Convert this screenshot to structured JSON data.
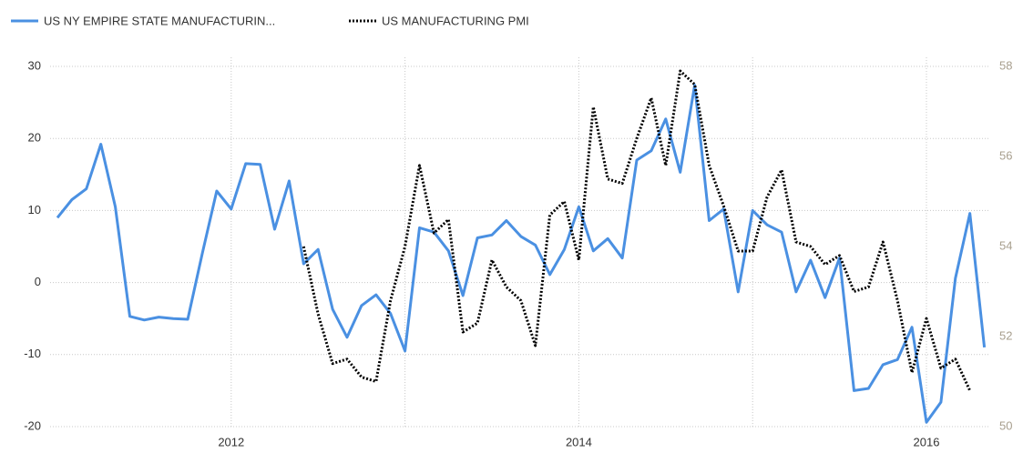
{
  "chart_data": {
    "type": "line",
    "categories": [
      null,
      null,
      null,
      null,
      null,
      null,
      null,
      null,
      null,
      null,
      null,
      null,
      "2012",
      null,
      null,
      null,
      null,
      null,
      null,
      null,
      null,
      null,
      null,
      null,
      null,
      null,
      null,
      null,
      null,
      null,
      null,
      null,
      null,
      null,
      null,
      null,
      "2014",
      null,
      null,
      null,
      null,
      null,
      null,
      null,
      null,
      null,
      null,
      null,
      null,
      null,
      null,
      null,
      null,
      null,
      null,
      null,
      null,
      null,
      null,
      null,
      "2016",
      null,
      null,
      null,
      null
    ],
    "series": [
      {
        "name": "US NY EMPIRE STATE MANUFACTURIN...",
        "color": "#4a90e2",
        "axis": "y",
        "values": [
          9,
          11.5,
          13,
          19.2,
          10.5,
          -4.7,
          -5.2,
          -4.8,
          -5,
          -5.1,
          4,
          12.7,
          10.2,
          16.5,
          16.4,
          7.4,
          14.1,
          2.6,
          4.6,
          -3.7,
          -7.6,
          -3.2,
          -1.7,
          -4.3,
          -9.5,
          7.6,
          7,
          4.4,
          -1.8,
          6.2,
          6.6,
          8.6,
          6.4,
          5.2,
          1.1,
          4.6,
          10.5,
          4.4,
          6.1,
          3.4,
          17,
          18.3,
          22.7,
          15.3,
          27.4,
          8.6,
          10.2,
          -1.3,
          10,
          8,
          7,
          -1.3,
          3.1,
          -2.1,
          3.4,
          -15,
          -14.7,
          -11.4,
          -10.7,
          -6.2,
          -19.4,
          -16.6,
          0.6,
          9.6,
          -9
        ]
      },
      {
        "name": "US MANUFACTURING PMI",
        "color": "#000000",
        "axis": "y2",
        "values": [
          null,
          null,
          null,
          null,
          null,
          null,
          null,
          null,
          null,
          null,
          null,
          null,
          null,
          null,
          null,
          null,
          null,
          54.0,
          52.5,
          51.4,
          51.5,
          51.1,
          51.0,
          52.8,
          54.0,
          55.8,
          54.3,
          54.6,
          52.1,
          52.3,
          53.7,
          53.1,
          52.8,
          51.8,
          54.7,
          55.0,
          53.7,
          57.1,
          55.5,
          55.4,
          56.4,
          57.3,
          55.8,
          57.9,
          57.6,
          55.8,
          54.9,
          53.9,
          53.9,
          55.1,
          55.7,
          54.1,
          54.0,
          53.6,
          53.8,
          53.0,
          53.1,
          54.1,
          52.8,
          51.2,
          52.4,
          51.3,
          51.5,
          50.8,
          null
        ]
      }
    ],
    "ylim": [
      -20,
      30
    ],
    "yticks": [
      -20,
      -10,
      0,
      10,
      20,
      30
    ],
    "y2lim": [
      50,
      58
    ],
    "y2ticks": [
      50,
      52,
      54,
      56,
      58
    ],
    "grid": true
  }
}
